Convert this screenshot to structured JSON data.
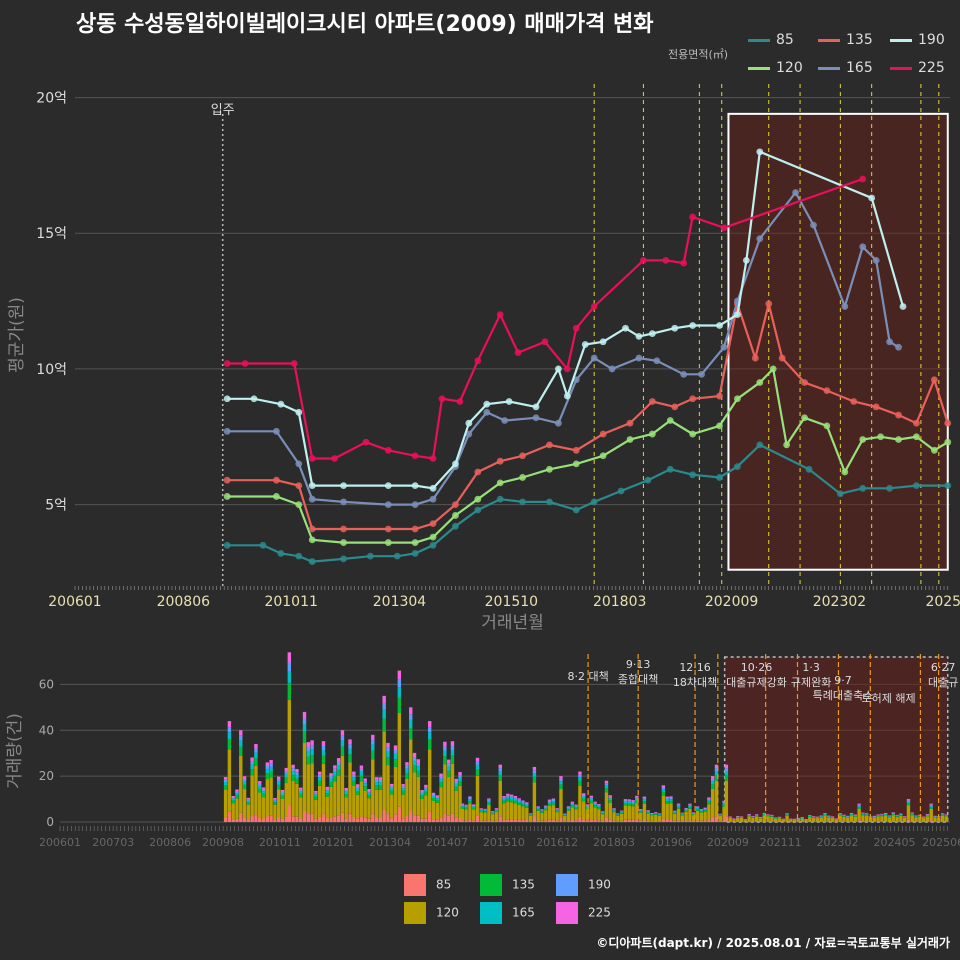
{
  "title": "상동 수성동일하이빌레이크시티 아파트(2009) 매매가격 변화",
  "footer": "©디아파트(dapt.kr) / 2025.08.01 / 자료=국토교통부 실거래가",
  "legend": {
    "title": "전용면적(㎡)",
    "items": [
      {
        "name": "85",
        "color": "#2a8a8c"
      },
      {
        "name": "120",
        "color": "#98e07a"
      },
      {
        "name": "135",
        "color": "#e8605a"
      },
      {
        "name": "165",
        "color": "#7a8fb8"
      },
      {
        "name": "190",
        "color": "#bff0f0"
      },
      {
        "name": "225",
        "color": "#e8105a"
      }
    ]
  },
  "bottom_legend": {
    "items": [
      {
        "name": "85",
        "color": "#f8766d"
      },
      {
        "name": "120",
        "color": "#b79f00"
      },
      {
        "name": "135",
        "color": "#00ba38"
      },
      {
        "name": "165",
        "color": "#00bfc4"
      },
      {
        "name": "190",
        "color": "#619cff"
      },
      {
        "name": "225",
        "color": "#f564e3"
      }
    ]
  },
  "chart_data": [
    {
      "type": "line",
      "xlabel": "거래년월",
      "ylabel": "평균가(원)",
      "x_ticks": [
        "200601",
        "200806",
        "201011",
        "201304",
        "201510",
        "201803",
        "202009",
        "202302",
        "2025"
      ],
      "y_ticks": [
        {
          "value": 5,
          "label": "5억"
        },
        {
          "value": 10,
          "label": "10억"
        },
        {
          "value": 15,
          "label": "15억"
        },
        {
          "value": 20,
          "label": "20억"
        }
      ],
      "ylim": [
        2,
        20.5
      ],
      "unit": "억",
      "annotation": {
        "label": "입주",
        "x": 2009.3
      },
      "policy_lines": [
        2017.6,
        2018.7,
        2019.95,
        2020.45,
        2021.5,
        2022.2,
        2023.1,
        2023.8,
        2024.9,
        2025.3
      ],
      "highlight": {
        "x0": 2020.6,
        "x1": 2025.5,
        "y0": 2.6,
        "y1": 19.4
      },
      "series": [
        {
          "name": "225",
          "points": [
            [
              2009.4,
              10.2
            ],
            [
              2009.8,
              10.2
            ],
            [
              2010.9,
              10.2
            ],
            [
              2011.3,
              6.7
            ],
            [
              2011.8,
              6.7
            ],
            [
              2012.5,
              7.3
            ],
            [
              2013.0,
              7.0
            ],
            [
              2013.6,
              6.8
            ],
            [
              2014.0,
              6.7
            ],
            [
              2014.2,
              8.9
            ],
            [
              2014.6,
              8.8
            ],
            [
              2015.0,
              10.3
            ],
            [
              2015.5,
              12.0
            ],
            [
              2015.9,
              10.6
            ],
            [
              2016.5,
              11.0
            ],
            [
              2017.0,
              10.0
            ],
            [
              2017.2,
              11.5
            ],
            [
              2017.6,
              12.3
            ],
            [
              2018.7,
              14.0
            ],
            [
              2019.2,
              14.0
            ],
            [
              2019.6,
              13.9
            ],
            [
              2019.8,
              15.6
            ],
            [
              2020.5,
              15.2
            ],
            [
              2023.6,
              17.0
            ]
          ]
        },
        {
          "name": "190",
          "points": [
            [
              2009.4,
              8.9
            ],
            [
              2010.0,
              8.9
            ],
            [
              2010.6,
              8.7
            ],
            [
              2011.0,
              8.4
            ],
            [
              2011.3,
              5.7
            ],
            [
              2012.0,
              5.7
            ],
            [
              2013.0,
              5.7
            ],
            [
              2013.6,
              5.7
            ],
            [
              2014.0,
              5.6
            ],
            [
              2014.5,
              6.5
            ],
            [
              2014.8,
              8.0
            ],
            [
              2015.2,
              8.7
            ],
            [
              2015.7,
              8.8
            ],
            [
              2016.3,
              8.6
            ],
            [
              2016.8,
              10.0
            ],
            [
              2017.0,
              9.0
            ],
            [
              2017.4,
              10.9
            ],
            [
              2017.8,
              11.0
            ],
            [
              2018.3,
              11.5
            ],
            [
              2018.6,
              11.2
            ],
            [
              2018.9,
              11.3
            ],
            [
              2019.4,
              11.5
            ],
            [
              2019.8,
              11.6
            ],
            [
              2020.4,
              11.6
            ],
            [
              2020.8,
              12.0
            ],
            [
              2021.0,
              14.0
            ],
            [
              2021.3,
              18.0
            ],
            [
              2023.8,
              16.3
            ],
            [
              2024.5,
              12.3
            ]
          ]
        },
        {
          "name": "165",
          "points": [
            [
              2009.4,
              7.7
            ],
            [
              2010.5,
              7.7
            ],
            [
              2011.0,
              6.5
            ],
            [
              2011.3,
              5.2
            ],
            [
              2012.0,
              5.1
            ],
            [
              2013.0,
              5.0
            ],
            [
              2013.6,
              5.0
            ],
            [
              2014.0,
              5.2
            ],
            [
              2014.5,
              6.4
            ],
            [
              2014.8,
              7.6
            ],
            [
              2015.2,
              8.4
            ],
            [
              2015.6,
              8.1
            ],
            [
              2016.3,
              8.2
            ],
            [
              2016.8,
              8.0
            ],
            [
              2017.2,
              9.6
            ],
            [
              2017.6,
              10.4
            ],
            [
              2018.0,
              10.0
            ],
            [
              2018.6,
              10.4
            ],
            [
              2019.0,
              10.3
            ],
            [
              2019.6,
              9.8
            ],
            [
              2020.0,
              9.8
            ],
            [
              2020.5,
              10.8
            ],
            [
              2020.8,
              12.5
            ],
            [
              2021.3,
              14.8
            ],
            [
              2022.1,
              16.5
            ],
            [
              2022.5,
              15.3
            ],
            [
              2023.2,
              12.3
            ],
            [
              2023.6,
              14.5
            ],
            [
              2023.9,
              14.0
            ],
            [
              2024.2,
              11.0
            ],
            [
              2024.4,
              10.8
            ]
          ]
        },
        {
          "name": "135",
          "points": [
            [
              2009.4,
              5.9
            ],
            [
              2010.5,
              5.9
            ],
            [
              2011.0,
              5.7
            ],
            [
              2011.3,
              4.1
            ],
            [
              2012.0,
              4.1
            ],
            [
              2013.0,
              4.1
            ],
            [
              2013.6,
              4.1
            ],
            [
              2014.0,
              4.3
            ],
            [
              2014.5,
              5.0
            ],
            [
              2015.0,
              6.2
            ],
            [
              2015.5,
              6.6
            ],
            [
              2016.0,
              6.8
            ],
            [
              2016.6,
              7.2
            ],
            [
              2017.2,
              7.0
            ],
            [
              2017.8,
              7.6
            ],
            [
              2018.4,
              8.0
            ],
            [
              2018.9,
              8.8
            ],
            [
              2019.4,
              8.6
            ],
            [
              2019.8,
              8.9
            ],
            [
              2020.4,
              9.0
            ],
            [
              2020.8,
              12.4
            ],
            [
              2021.2,
              10.4
            ],
            [
              2021.5,
              12.4
            ],
            [
              2021.8,
              10.4
            ],
            [
              2022.3,
              9.5
            ],
            [
              2022.8,
              9.2
            ],
            [
              2023.4,
              8.8
            ],
            [
              2023.9,
              8.6
            ],
            [
              2024.4,
              8.3
            ],
            [
              2024.8,
              8.0
            ],
            [
              2025.2,
              9.6
            ],
            [
              2025.5,
              8.0
            ]
          ]
        },
        {
          "name": "120",
          "points": [
            [
              2009.4,
              5.3
            ],
            [
              2010.5,
              5.3
            ],
            [
              2011.0,
              5.0
            ],
            [
              2011.3,
              3.7
            ],
            [
              2012.0,
              3.6
            ],
            [
              2013.0,
              3.6
            ],
            [
              2013.6,
              3.6
            ],
            [
              2014.0,
              3.8
            ],
            [
              2014.5,
              4.6
            ],
            [
              2015.0,
              5.2
            ],
            [
              2015.5,
              5.8
            ],
            [
              2016.0,
              6.0
            ],
            [
              2016.6,
              6.3
            ],
            [
              2017.2,
              6.5
            ],
            [
              2017.8,
              6.8
            ],
            [
              2018.4,
              7.4
            ],
            [
              2018.9,
              7.6
            ],
            [
              2019.3,
              8.1
            ],
            [
              2019.8,
              7.6
            ],
            [
              2020.4,
              7.9
            ],
            [
              2020.8,
              8.9
            ],
            [
              2021.3,
              9.5
            ],
            [
              2021.6,
              10.0
            ],
            [
              2021.9,
              7.2
            ],
            [
              2022.3,
              8.2
            ],
            [
              2022.8,
              7.9
            ],
            [
              2023.2,
              6.2
            ],
            [
              2023.6,
              7.4
            ],
            [
              2024.0,
              7.5
            ],
            [
              2024.4,
              7.4
            ],
            [
              2024.8,
              7.5
            ],
            [
              2025.2,
              7.0
            ],
            [
              2025.5,
              7.3
            ]
          ]
        },
        {
          "name": "85",
          "points": [
            [
              2009.4,
              3.5
            ],
            [
              2010.2,
              3.5
            ],
            [
              2010.6,
              3.2
            ],
            [
              2011.0,
              3.1
            ],
            [
              2011.3,
              2.9
            ],
            [
              2012.0,
              3.0
            ],
            [
              2012.6,
              3.1
            ],
            [
              2013.2,
              3.1
            ],
            [
              2013.6,
              3.2
            ],
            [
              2014.0,
              3.5
            ],
            [
              2014.5,
              4.2
            ],
            [
              2015.0,
              4.8
            ],
            [
              2015.5,
              5.2
            ],
            [
              2016.0,
              5.1
            ],
            [
              2016.6,
              5.1
            ],
            [
              2017.2,
              4.8
            ],
            [
              2017.6,
              5.1
            ],
            [
              2018.2,
              5.5
            ],
            [
              2018.8,
              5.9
            ],
            [
              2019.3,
              6.3
            ],
            [
              2019.8,
              6.1
            ],
            [
              2020.4,
              6.0
            ],
            [
              2020.8,
              6.4
            ],
            [
              2021.3,
              7.2
            ],
            [
              2022.4,
              6.3
            ],
            [
              2023.1,
              5.4
            ],
            [
              2023.6,
              5.6
            ],
            [
              2024.2,
              5.6
            ],
            [
              2024.8,
              5.7
            ],
            [
              2025.5,
              5.7
            ]
          ]
        }
      ]
    },
    {
      "type": "bar",
      "ylabel": "거래량(건)",
      "y_ticks": [
        0,
        20,
        40,
        60
      ],
      "ylim": [
        0,
        75
      ],
      "x_ticks": [
        "200601",
        "200703",
        "200806",
        "200908",
        "201011",
        "201201",
        "201304",
        "201407",
        "201510",
        "201612",
        "201803",
        "201906",
        "202009",
        "202111",
        "202302",
        "202405",
        "202506"
      ],
      "policy_annotations": [
        {
          "x": 2017.6,
          "lines": [
            "8·2 대책"
          ]
        },
        {
          "x": 2018.7,
          "lines": [
            "9·13",
            "종합대책"
          ]
        },
        {
          "x": 2019.95,
          "lines": [
            "12·16",
            "18차대책"
          ]
        },
        {
          "x": 2021.3,
          "lines": [
            "10·26",
            "대출규제강화"
          ]
        },
        {
          "x": 2022.5,
          "lines": [
            "1·3",
            "규제완화"
          ]
        },
        {
          "x": 2023.2,
          "lines": [
            "9·7",
            "특례대출축소"
          ]
        },
        {
          "x": 2024.2,
          "lines": [
            "토허제 해제"
          ]
        },
        {
          "x": 2025.4,
          "lines": [
            "6·27",
            "대출규"
          ]
        }
      ],
      "highlight": {
        "x0": 2020.6,
        "x1": 2025.5
      },
      "monthly_totals": [
        {
          "year_start": 2009.6,
          "year_end": 2011.0,
          "level": 22,
          "peaks": [
            [
              2009.7,
              44
            ],
            [
              2009.9,
              40
            ],
            [
              2010.3,
              34
            ],
            [
              2010.6,
              27
            ]
          ]
        },
        {
          "year_start": 2011.0,
          "year_end": 2014.8,
          "level": 26,
          "peaks": [
            [
              2011.0,
              74
            ],
            [
              2011.3,
              48
            ],
            [
              2012.2,
              40
            ],
            [
              2012.8,
              38
            ],
            [
              2013.1,
              55
            ],
            [
              2013.4,
              66
            ],
            [
              2013.7,
              50
            ],
            [
              2014.1,
              44
            ],
            [
              2014.4,
              35
            ]
          ]
        },
        {
          "year_start": 2014.8,
          "year_end": 2020.6,
          "level": 9,
          "peaks": [
            [
              2015.1,
              28
            ],
            [
              2015.6,
              25
            ],
            [
              2016.4,
              24
            ],
            [
              2017.0,
              20
            ],
            [
              2017.4,
              22
            ],
            [
              2018.0,
              18
            ],
            [
              2019.2,
              16
            ],
            [
              2020.3,
              20
            ],
            [
              2020.4,
              25
            ]
          ]
        },
        {
          "year_start": 2020.6,
          "year_end": 2025.5,
          "level": 3,
          "peaks": [
            [
              2020.6,
              25
            ],
            [
              2023.5,
              8
            ],
            [
              2024.6,
              10
            ],
            [
              2025.1,
              8
            ]
          ]
        }
      ]
    }
  ]
}
